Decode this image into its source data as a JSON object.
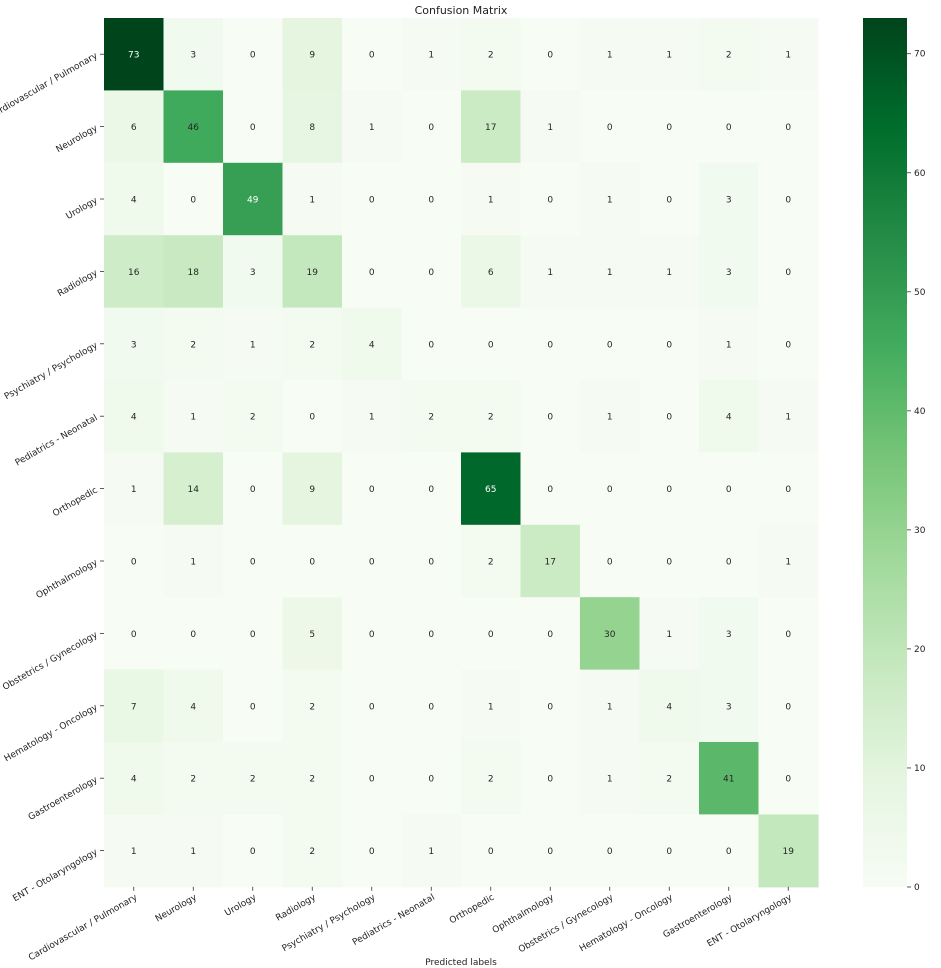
{
  "chart_data": {
    "type": "heatmap",
    "title": "Confusion Matrix",
    "xlabel": "Predicted labels",
    "ylabel": "",
    "x_categories": [
      "Cardiovascular / Pulmonary",
      "Neurology",
      "Urology",
      "Radiology",
      "Psychiatry / Psychology",
      "Pediatrics - Neonatal",
      "Orthopedic",
      "Ophthalmology",
      "Obstetrics / Gynecology",
      "Hematology - Oncology",
      "Gastroenterology",
      "ENT - Otolaryngology"
    ],
    "y_categories": [
      "Cardiovascular / Pulmonary",
      "Neurology",
      "Urology",
      "Radiology",
      "Psychiatry / Psychology",
      "Pediatrics - Neonatal",
      "Orthopedic",
      "Ophthalmology",
      "Obstetrics / Gynecology",
      "Hematology - Oncology",
      "Gastroenterology",
      "ENT - Otolaryngology"
    ],
    "values": [
      [
        73,
        3,
        0,
        9,
        0,
        1,
        2,
        0,
        1,
        1,
        2,
        1
      ],
      [
        6,
        46,
        0,
        8,
        1,
        0,
        17,
        1,
        0,
        0,
        0,
        0
      ],
      [
        4,
        0,
        49,
        1,
        0,
        0,
        1,
        0,
        1,
        0,
        3,
        0
      ],
      [
        16,
        18,
        3,
        19,
        0,
        0,
        6,
        1,
        1,
        1,
        3,
        0
      ],
      [
        3,
        2,
        1,
        2,
        4,
        0,
        0,
        0,
        0,
        0,
        1,
        0
      ],
      [
        4,
        1,
        2,
        0,
        1,
        2,
        2,
        0,
        1,
        0,
        4,
        1
      ],
      [
        1,
        14,
        0,
        9,
        0,
        0,
        65,
        0,
        0,
        0,
        0,
        0
      ],
      [
        0,
        1,
        0,
        0,
        0,
        0,
        2,
        17,
        0,
        0,
        0,
        1
      ],
      [
        0,
        0,
        0,
        5,
        0,
        0,
        0,
        0,
        30,
        1,
        3,
        0
      ],
      [
        7,
        4,
        0,
        2,
        0,
        0,
        1,
        0,
        1,
        4,
        3,
        0
      ],
      [
        4,
        2,
        2,
        2,
        0,
        0,
        2,
        0,
        1,
        2,
        41,
        0
      ],
      [
        1,
        1,
        0,
        2,
        0,
        1,
        0,
        0,
        0,
        0,
        0,
        19
      ]
    ],
    "colorbar": {
      "colormap": "Greens",
      "range": [
        0,
        73
      ],
      "ticks": [
        0,
        10,
        20,
        30,
        40,
        50,
        60,
        70
      ]
    },
    "grid": false
  }
}
